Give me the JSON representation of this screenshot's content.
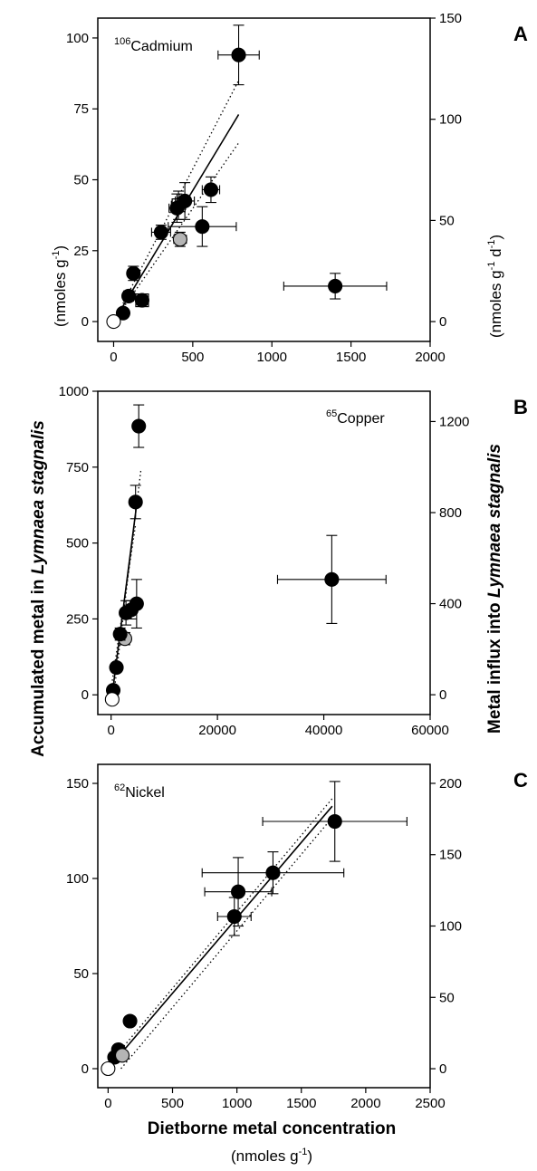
{
  "figure": {
    "left_ylabel": {
      "pre": "Accumulated metal in ",
      "species": "Lymnaea stagnalis"
    },
    "left_yunit": {
      "pre": "(nmoles g",
      "sup": "-1",
      "post": ")"
    },
    "right_ylabel": {
      "pre": "Metal influx into ",
      "species": "Lymnaea stagnalis"
    },
    "right_yunit": {
      "pre": "(nmoles g",
      "sup1": "-1",
      "mid": " d",
      "sup2": "-1",
      "post": ")"
    },
    "xlabel": "Dietborne metal concentration",
    "xunit": {
      "pre": "(nmoles g",
      "sup": "-1",
      "post": ")"
    }
  },
  "colors": {
    "filled": "#000000",
    "gray": "#b5b5b5",
    "open": "#ffffff",
    "line": "#000000"
  },
  "chart_data": [
    {
      "type": "scatter",
      "panel": "A",
      "isotope": {
        "mass": "106",
        "element": "Cadmium"
      },
      "xlim": [
        -100,
        2000
      ],
      "ylim": [
        -7,
        107
      ],
      "xticks": [
        0,
        500,
        1000,
        1500,
        2000
      ],
      "yticks": [
        0,
        25,
        50,
        75,
        100
      ],
      "right_ylim": [
        -9.8,
        150
      ],
      "right_yticks": [
        0,
        50,
        100,
        150
      ],
      "points": [
        {
          "x": 790,
          "y": 94,
          "xerr": 130,
          "yerr": 10.5,
          "style": "filled"
        },
        {
          "x": 615,
          "y": 46.5,
          "xerr": 55,
          "yerr": 4.5,
          "style": "filled"
        },
        {
          "x": 450,
          "y": 42.5,
          "xerr": 60,
          "yerr": 6.5,
          "style": "filled"
        },
        {
          "x": 400,
          "y": 40,
          "xerr": 50,
          "yerr": 5,
          "style": "filled"
        },
        {
          "x": 410,
          "y": 41,
          "xerr": 45,
          "yerr": 5,
          "style": "open-square"
        },
        {
          "x": 300,
          "y": 31.5,
          "xerr": 60,
          "yerr": 2.5,
          "style": "filled"
        },
        {
          "x": 420,
          "y": 29,
          "xerr": 40,
          "yerr": 2.5,
          "style": "gray"
        },
        {
          "x": 560,
          "y": 33.5,
          "xerr": 215,
          "yerr": 7,
          "style": "filled"
        },
        {
          "x": 125,
          "y": 17,
          "xerr": 20,
          "yerr": 2.5,
          "style": "filled"
        },
        {
          "x": 95,
          "y": 9,
          "xerr": 20,
          "yerr": 1.8,
          "style": "filled"
        },
        {
          "x": 180,
          "y": 7.5,
          "xerr": 30,
          "yerr": 1.5,
          "style": "filled"
        },
        {
          "x": 180,
          "y": 7.5,
          "xerr": 0,
          "yerr": 0,
          "style": "open-square"
        },
        {
          "x": 60,
          "y": 3,
          "xerr": 0,
          "yerr": 0,
          "style": "filled"
        },
        {
          "x": 1400,
          "y": 12.5,
          "xerr": 325,
          "yerr": 4.5,
          "style": "filled"
        },
        {
          "x": 0,
          "y": 0,
          "xerr": 0,
          "yerr": 0,
          "style": "open"
        }
      ],
      "fit": {
        "x0": 0,
        "y0": 0,
        "x1": 790,
        "y1": 73
      },
      "ci_upper": {
        "x0": 0,
        "y0": 0,
        "x1": 790,
        "y1": 85
      },
      "ci_lower": {
        "x0": 0,
        "y0": 0,
        "x1": 790,
        "y1": 63
      }
    },
    {
      "type": "scatter",
      "panel": "B",
      "isotope": {
        "mass": "65",
        "element": "Copper"
      },
      "xlim": [
        -2500,
        60000
      ],
      "ylim": [
        -65,
        1000
      ],
      "xticks": [
        0,
        20000,
        40000,
        60000
      ],
      "yticks": [
        0,
        250,
        500,
        750,
        1000
      ],
      "right_ylim": [
        -87,
        1333
      ],
      "right_yticks": [
        0,
        400,
        800,
        1200
      ],
      "points": [
        {
          "x": 5200,
          "y": 885,
          "xerr": 0,
          "yerr": 70,
          "style": "filled"
        },
        {
          "x": 4600,
          "y": 635,
          "xerr": 0,
          "yerr": 55,
          "style": "filled"
        },
        {
          "x": 4800,
          "y": 300,
          "xerr": 1000,
          "yerr": 80,
          "style": "filled"
        },
        {
          "x": 3800,
          "y": 280,
          "xerr": 600,
          "yerr": 30,
          "style": "filled"
        },
        {
          "x": 2800,
          "y": 270,
          "xerr": 500,
          "yerr": 40,
          "style": "filled"
        },
        {
          "x": 2600,
          "y": 185,
          "xerr": 400,
          "yerr": 20,
          "style": "gray"
        },
        {
          "x": 1700,
          "y": 200,
          "xerr": 300,
          "yerr": 20,
          "style": "filled"
        },
        {
          "x": 1000,
          "y": 90,
          "xerr": 200,
          "yerr": 15,
          "style": "filled"
        },
        {
          "x": 400,
          "y": 15,
          "xerr": 0,
          "yerr": 0,
          "style": "filled"
        },
        {
          "x": 200,
          "y": -15,
          "xerr": 0,
          "yerr": 0,
          "style": "open"
        },
        {
          "x": 41500,
          "y": 380,
          "xerr": 10200,
          "yerr": 145,
          "style": "filled"
        }
      ],
      "fit": {
        "x0": 200,
        "y0": 0,
        "x1": 4900,
        "y1": 640
      },
      "ci_upper": {
        "x0": 500,
        "y0": 0,
        "x1": 5600,
        "y1": 740
      },
      "ci_lower": {
        "x0": 0,
        "y0": 20,
        "x1": 4600,
        "y1": 560
      }
    },
    {
      "type": "scatter",
      "panel": "C",
      "isotope": {
        "mass": "62",
        "element": "Nickel"
      },
      "xlim": [
        -80,
        2500
      ],
      "ylim": [
        -10,
        160
      ],
      "xticks": [
        0,
        500,
        1000,
        1500,
        2000,
        2500
      ],
      "yticks": [
        0,
        50,
        100,
        150
      ],
      "right_ylim": [
        -13.3,
        213.3
      ],
      "right_yticks": [
        0,
        50,
        100,
        150,
        200
      ],
      "points": [
        {
          "x": 1760,
          "y": 130,
          "xerr": 560,
          "yerr": 21,
          "style": "filled"
        },
        {
          "x": 1280,
          "y": 103,
          "xerr": 550,
          "yerr": 11,
          "style": "filled"
        },
        {
          "x": 1010,
          "y": 93,
          "xerr": 260,
          "yerr": 18,
          "style": "filled"
        },
        {
          "x": 980,
          "y": 80,
          "xerr": 130,
          "yerr": 10,
          "style": "filled"
        },
        {
          "x": 170,
          "y": 25,
          "xerr": 30,
          "yerr": 2,
          "style": "filled"
        },
        {
          "x": 80,
          "y": 10,
          "xerr": 15,
          "yerr": 1.5,
          "style": "filled"
        },
        {
          "x": 50,
          "y": 6,
          "xerr": 0,
          "yerr": 0,
          "style": "filled"
        },
        {
          "x": 110,
          "y": 7,
          "xerr": 0,
          "yerr": 0,
          "style": "gray"
        },
        {
          "x": 0,
          "y": 0,
          "xerr": 0,
          "yerr": 0,
          "style": "open"
        }
      ],
      "fit": {
        "x0": 0,
        "y0": 0,
        "x1": 1740,
        "y1": 138
      },
      "ci_upper": {
        "x0": 0,
        "y0": 2,
        "x1": 1740,
        "y1": 142
      },
      "ci_lower": {
        "x0": 100,
        "y0": 0,
        "x1": 1740,
        "y1": 132
      }
    }
  ]
}
